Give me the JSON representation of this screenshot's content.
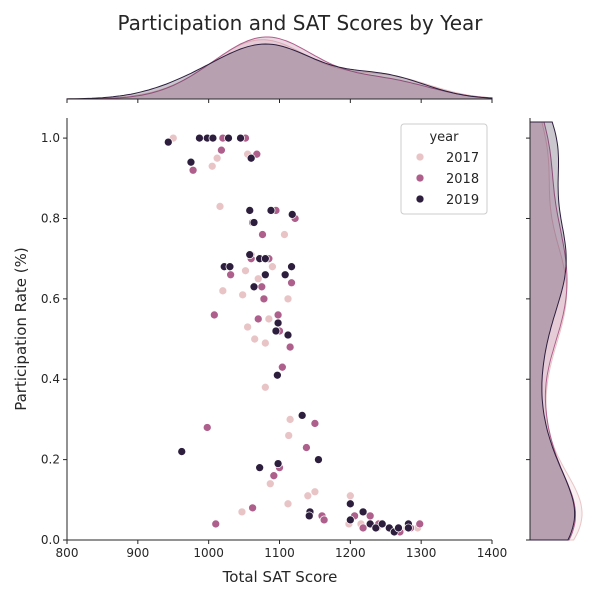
{
  "chart_data": {
    "type": "scatter",
    "title": "Participation and SAT Scores by Year",
    "xlabel": "Total SAT Score",
    "ylabel": "Participation Rate (%)",
    "xlim": [
      800,
      1400
    ],
    "ylim": [
      0.0,
      1.05
    ],
    "xticks": [
      "800",
      "900",
      "1000",
      "1100",
      "1200",
      "1300",
      "1400"
    ],
    "yticks": [
      "0.0",
      "0.2",
      "0.4",
      "0.6",
      "0.8",
      "1.0"
    ],
    "legend": {
      "title": "year",
      "placement": "top-right"
    },
    "marginals": "kde",
    "series": [
      {
        "name": "2017",
        "color": "#e9c4c6",
        "points": [
          [
            950,
            1.0
          ],
          [
            1005,
            0.93
          ],
          [
            1012,
            0.95
          ],
          [
            1055,
            0.96
          ],
          [
            1016,
            0.83
          ],
          [
            1107,
            0.76
          ],
          [
            1060,
            0.71
          ],
          [
            1052,
            0.67
          ],
          [
            1048,
            0.61
          ],
          [
            1020,
            0.62
          ],
          [
            1112,
            0.6
          ],
          [
            1055,
            0.53
          ],
          [
            1065,
            0.5
          ],
          [
            1080,
            0.49
          ],
          [
            1085,
            0.55
          ],
          [
            1080,
            0.38
          ],
          [
            1115,
            0.3
          ],
          [
            1113,
            0.26
          ],
          [
            1087,
            0.14
          ],
          [
            1140,
            0.11
          ],
          [
            1150,
            0.12
          ],
          [
            1112,
            0.09
          ],
          [
            1047,
            0.07
          ],
          [
            1200,
            0.11
          ],
          [
            1198,
            0.04
          ],
          [
            1215,
            0.04
          ],
          [
            1238,
            0.03
          ],
          [
            1245,
            0.04
          ],
          [
            1265,
            0.02
          ],
          [
            1280,
            0.03
          ],
          [
            1295,
            0.03
          ],
          [
            1270,
            0.02
          ],
          [
            1070,
            0.65
          ],
          [
            1090,
            0.68
          ]
        ]
      },
      {
        "name": "2018",
        "color": "#ae5f8b",
        "points": [
          [
            978,
            0.92
          ],
          [
            1018,
            0.97
          ],
          [
            1020,
            1.0
          ],
          [
            1052,
            1.0
          ],
          [
            1068,
            0.96
          ],
          [
            1062,
            0.79
          ],
          [
            1095,
            0.82
          ],
          [
            1122,
            0.8
          ],
          [
            1076,
            0.76
          ],
          [
            1060,
            0.7
          ],
          [
            1082,
            0.7
          ],
          [
            1085,
            0.7
          ],
          [
            1031,
            0.66
          ],
          [
            1075,
            0.63
          ],
          [
            1078,
            0.6
          ],
          [
            1117,
            0.64
          ],
          [
            1008,
            0.56
          ],
          [
            1070,
            0.55
          ],
          [
            1098,
            0.56
          ],
          [
            1100,
            0.52
          ],
          [
            1115,
            0.48
          ],
          [
            1104,
            0.43
          ],
          [
            1150,
            0.29
          ],
          [
            1138,
            0.23
          ],
          [
            998,
            0.28
          ],
          [
            1100,
            0.18
          ],
          [
            1092,
            0.16
          ],
          [
            1062,
            0.08
          ],
          [
            1010,
            0.04
          ],
          [
            1160,
            0.06
          ],
          [
            1163,
            0.05
          ],
          [
            1206,
            0.06
          ],
          [
            1228,
            0.06
          ],
          [
            1240,
            0.04
          ],
          [
            1255,
            0.03
          ],
          [
            1298,
            0.04
          ],
          [
            1285,
            0.03
          ],
          [
            1270,
            0.02
          ],
          [
            1218,
            0.03
          ]
        ]
      },
      {
        "name": "2019",
        "color": "#2d1e3e",
        "points": [
          [
            943,
            0.99
          ],
          [
            987,
            1.0
          ],
          [
            998,
            1.0
          ],
          [
            1006,
            1.0
          ],
          [
            1028,
            1.0
          ],
          [
            1045,
            1.0
          ],
          [
            975,
            0.94
          ],
          [
            1060,
            0.95
          ],
          [
            1058,
            0.82
          ],
          [
            1088,
            0.82
          ],
          [
            1118,
            0.81
          ],
          [
            1064,
            0.79
          ],
          [
            1058,
            0.71
          ],
          [
            1072,
            0.7
          ],
          [
            1080,
            0.7
          ],
          [
            1022,
            0.68
          ],
          [
            1030,
            0.68
          ],
          [
            1117,
            0.68
          ],
          [
            1108,
            0.66
          ],
          [
            1080,
            0.66
          ],
          [
            1064,
            0.63
          ],
          [
            1095,
            0.52
          ],
          [
            1112,
            0.51
          ],
          [
            1098,
            0.54
          ],
          [
            1097,
            0.41
          ],
          [
            1132,
            0.31
          ],
          [
            1155,
            0.2
          ],
          [
            962,
            0.22
          ],
          [
            1098,
            0.19
          ],
          [
            1072,
            0.18
          ],
          [
            1143,
            0.07
          ],
          [
            1142,
            0.06
          ],
          [
            1200,
            0.09
          ],
          [
            1200,
            0.05
          ],
          [
            1218,
            0.07
          ],
          [
            1228,
            0.04
          ],
          [
            1236,
            0.03
          ],
          [
            1245,
            0.04
          ],
          [
            1255,
            0.03
          ],
          [
            1262,
            0.02
          ],
          [
            1268,
            0.03
          ],
          [
            1282,
            0.04
          ],
          [
            1282,
            0.03
          ]
        ]
      }
    ]
  }
}
